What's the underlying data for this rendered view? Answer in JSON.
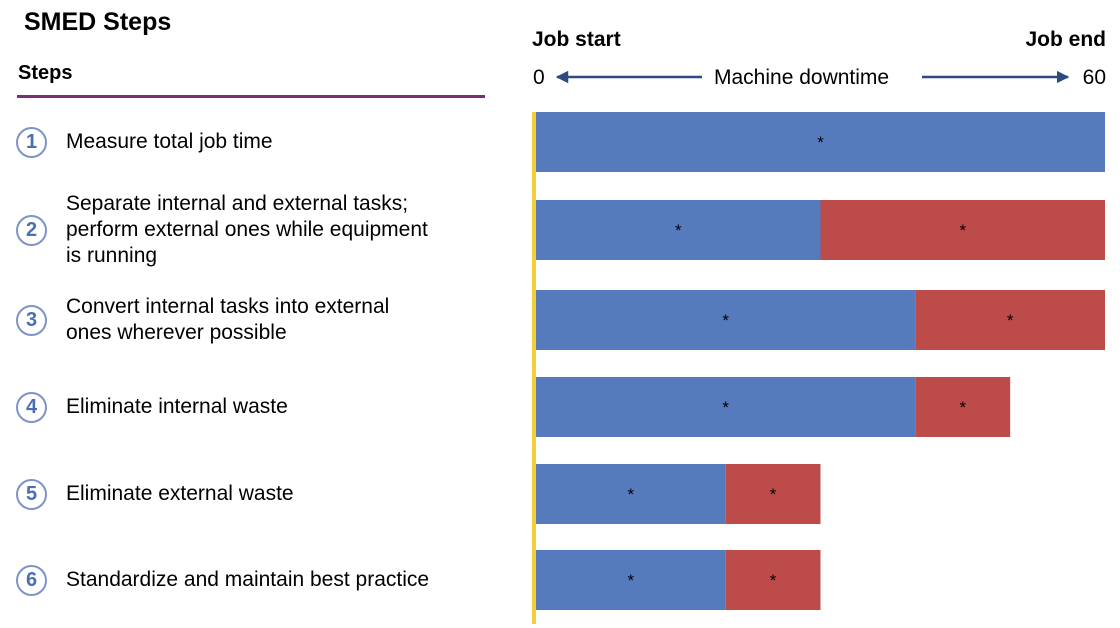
{
  "title": "SMED Steps",
  "steps_header": "Steps",
  "steps": [
    {
      "num": "1",
      "lines": [
        "Measure total job time"
      ]
    },
    {
      "num": "2",
      "lines": [
        "Separate internal and external tasks;",
        "perform external ones while equipment",
        "is running"
      ]
    },
    {
      "num": "3",
      "lines": [
        "Convert internal tasks into external",
        "ones wherever possible"
      ]
    },
    {
      "num": "4",
      "lines": [
        "Eliminate internal waste"
      ]
    },
    {
      "num": "5",
      "lines": [
        "Eliminate external waste"
      ]
    },
    {
      "num": "6",
      "lines": [
        "Standardize and maintain best practice"
      ]
    }
  ],
  "header": {
    "left": "Job start",
    "right": "Job end"
  },
  "colors": {
    "internal": "#557bbd",
    "external": "#bd4b49",
    "start_line": "#f5cf3a",
    "axis_arrow": "#2e4a80",
    "rule": "#7b2c7b"
  },
  "chart_data": {
    "type": "bar",
    "orientation": "horizontal",
    "stacked": true,
    "xlabel": "Machine downtime",
    "xlim": [
      0,
      60
    ],
    "tick_labels": [
      "0",
      "60"
    ],
    "categories": [
      "1",
      "2",
      "3",
      "4",
      "5",
      "6"
    ],
    "series": [
      {
        "values": [
          60,
          30,
          40,
          40,
          20,
          20
        ],
        "labels": [
          "*",
          "*",
          "*",
          "*",
          "*",
          "*"
        ],
        "color": "#557bbd"
      },
      {
        "values": [
          0,
          30,
          20,
          10,
          10,
          10
        ],
        "labels": [
          "",
          "*",
          "*",
          "*",
          "*",
          "*"
        ],
        "color": "#bd4b49"
      }
    ]
  }
}
